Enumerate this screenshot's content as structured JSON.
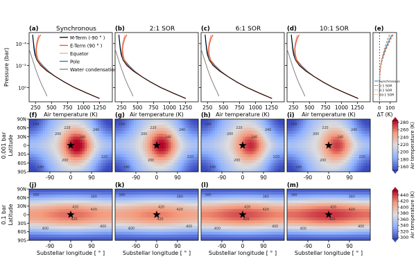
{
  "chart_data": [
    {
      "type": "line",
      "panels": [
        {
          "letter": "(a)",
          "title": "Synchronous"
        },
        {
          "letter": "(b)",
          "title": "2:1 SOR"
        },
        {
          "letter": "(c)",
          "title": "6:1 SOR"
        },
        {
          "letter": "(d)",
          "title": "10:1 SOR"
        }
      ],
      "xlabel": "Air temperature (K)",
      "ylabel": "Pressure (bar)",
      "xticks": [
        250,
        500,
        750,
        1000,
        1250
      ],
      "xlim": [
        150,
        1450
      ],
      "ylim_log10": [
        -5,
        1.3
      ],
      "yticks": [
        {
          "exp": -4,
          "label": "10⁻⁴"
        },
        {
          "exp": -2,
          "label": "10⁻²"
        },
        {
          "exp": 0,
          "label": "10⁰"
        }
      ],
      "legend_position": "top-right of panel (a)",
      "series": [
        {
          "name": "M-Term (-90 ° )",
          "color": "#000000"
        },
        {
          "name": "E-Term (90 ° )",
          "color": "#e8571e"
        },
        {
          "name": "Equator",
          "color": "#f2a3a3"
        },
        {
          "name": "Pole",
          "color": "#1f77b4"
        },
        {
          "name": "Water condensation",
          "color": "#7f7f7f"
        }
      ],
      "profiles": {
        "log10p": [
          -4.8,
          -4.5,
          -4.0,
          -3.5,
          -3.0,
          -2.5,
          -2.0,
          -1.5,
          -1.0,
          -0.5,
          0.0,
          0.5,
          1.0
        ],
        "deep": [
          205,
          210,
          220,
          232,
          250,
          290,
          360,
          450,
          560,
          700,
          860,
          1050,
          1250
        ],
        "mterm": [
          205,
          210,
          218,
          226,
          240,
          270,
          330,
          430,
          560,
          700,
          860,
          1050,
          1250
        ],
        "eterm": [
          330,
          300,
          275,
          262,
          268,
          290,
          350,
          440,
          560,
          700,
          860,
          1050,
          1250
        ],
        "equator": [
          300,
          285,
          265,
          255,
          262,
          285,
          345,
          440,
          560,
          700,
          860,
          1050,
          1250
        ],
        "water_condensation": [
          {
            "T": 150,
            "log10p": -3.5
          },
          {
            "T": 200,
            "log10p": -2.6
          },
          {
            "T": 250,
            "log10p": -1.7
          },
          {
            "T": 300,
            "log10p": -0.9
          },
          {
            "T": 350,
            "log10p": -0.2
          },
          {
            "T": 400,
            "log10p": 0.4
          },
          {
            "T": 430,
            "log10p": 0.8
          }
        ]
      }
    },
    {
      "type": "line",
      "panel": {
        "letter": "(e)"
      },
      "xlabel": "ΔT (K)",
      "xticks": [
        0,
        100
      ],
      "xlim": [
        -60,
        160
      ],
      "legend": [
        "Synchronous",
        "2:1 SOR",
        "6:1 SOR",
        "10:1 SOR"
      ],
      "series": [
        {
          "name": "Synchronous",
          "color": "#1f77b4",
          "dash": "solid",
          "dT": [
            120,
            100,
            78,
            55,
            38,
            22,
            12,
            6,
            2,
            0,
            0,
            0,
            0
          ]
        },
        {
          "name": "2:1 SOR",
          "color": "#e8571e",
          "dash": "dashed",
          "dT": [
            128,
            110,
            88,
            62,
            44,
            26,
            14,
            7,
            3,
            1,
            0,
            0,
            0
          ]
        },
        {
          "name": "6:1 SOR",
          "color": "#7fb3d9",
          "dash": "dashed",
          "dT": [
            100,
            84,
            66,
            48,
            34,
            20,
            11,
            5,
            2,
            0,
            0,
            0,
            0
          ]
        },
        {
          "name": "10:1 SOR",
          "color": "#e8a87c",
          "dash": "dashed",
          "dT": [
            92,
            78,
            60,
            44,
            30,
            18,
            10,
            5,
            2,
            0,
            0,
            0,
            0
          ]
        }
      ]
    },
    {
      "type": "heatmap",
      "row_label": "0.001 bar",
      "panels": [
        {
          "letter": "(f)",
          "hot_amp": 75,
          "cold_amp": 62,
          "east_shift": 28
        },
        {
          "letter": "(g)",
          "hot_amp": 70,
          "cold_amp": 58,
          "east_shift": 22
        },
        {
          "letter": "(h)",
          "hot_amp": 62,
          "cold_amp": 60,
          "east_shift": 35
        },
        {
          "letter": "(i)",
          "hot_amp": 58,
          "cold_amp": 62,
          "east_shift": 38
        }
      ],
      "ylabel": "Latitude",
      "yticklabels": [
        "90N",
        "60N",
        "30N",
        "0",
        "30S",
        "60S",
        "90S"
      ],
      "xticklabels": [
        "-90",
        "0",
        "90"
      ],
      "xtick_values": [
        -90,
        0,
        90
      ],
      "colorbar": {
        "label": "Air temperature (K)",
        "ticks": [
          160,
          180,
          200,
          220,
          240,
          260,
          280
        ],
        "range": [
          150,
          285
        ],
        "colormap": "coolwarm"
      },
      "contour_labels": [
        {
          "text": "180",
          "lon": -150,
          "lat": 74
        },
        {
          "text": "180",
          "lon": -130,
          "lat": -74
        },
        {
          "text": "200",
          "lon": -55,
          "lat": 40
        },
        {
          "text": "220",
          "lon": -15,
          "lat": 62
        },
        {
          "text": "240",
          "lon": 50,
          "lat": 30
        },
        {
          "text": "240",
          "lon": 110,
          "lat": 55
        },
        {
          "text": "200",
          "lon": -25,
          "lat": -50
        },
        {
          "text": "220",
          "lon": 145,
          "lat": -38
        }
      ],
      "marker": {
        "symbol": "star",
        "lon": 0,
        "lat": 0
      }
    },
    {
      "type": "heatmap",
      "row_label": "0.1 bar",
      "panels": [
        {
          "letter": "(j)",
          "flat_amp": 120
        },
        {
          "letter": "(k)",
          "flat_amp": 115
        },
        {
          "letter": "(l)",
          "flat_amp": 128
        },
        {
          "letter": "(m)",
          "flat_amp": 135
        }
      ],
      "ylabel": "Latitude",
      "yticklabels": [
        "90N",
        "60N",
        "30N",
        "0",
        "30S",
        "60S",
        "90S"
      ],
      "xticklabels": [
        "-90",
        "0",
        "90"
      ],
      "xtick_values": [
        -90,
        0,
        90
      ],
      "xlabel": "Substellar longitude [ ° ]",
      "colorbar": {
        "label": "Air temperature (K)",
        "ticks": [
          300,
          320,
          340,
          360,
          380,
          400,
          420,
          440
        ],
        "range": [
          295,
          455
        ],
        "colormap": "coolwarm"
      },
      "contour_labels": [
        {
          "text": "380",
          "lon": -150,
          "lat": 70
        },
        {
          "text": "420",
          "lon": 20,
          "lat": 28
        },
        {
          "text": "420",
          "lon": 100,
          "lat": 20
        },
        {
          "text": "420",
          "lon": 15,
          "lat": -14
        },
        {
          "text": "400",
          "lon": -110,
          "lat": -48
        },
        {
          "text": "400",
          "lon": 140,
          "lat": -40
        },
        {
          "text": "380",
          "lon": 100,
          "lat": 64
        }
      ],
      "marker": {
        "symbol": "star",
        "lon": 0,
        "lat": 0
      }
    }
  ]
}
